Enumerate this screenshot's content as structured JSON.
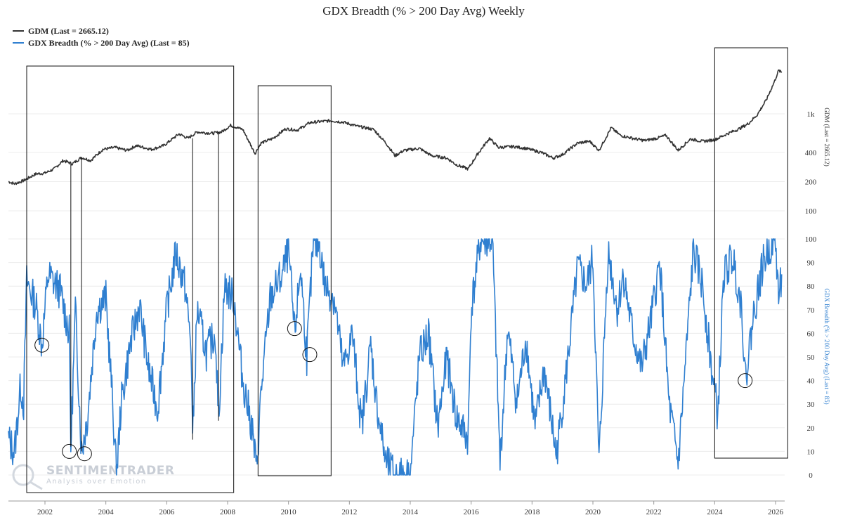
{
  "chart_data": {
    "type": "line",
    "title": "GDX Breadth (% > 200 Day Avg) Weekly",
    "legend": [
      {
        "label": "GDM (Last = 2665.12)",
        "color": "#333333"
      },
      {
        "label": "GDX Breadth (% > 200 Day Avg) (Last = 85)",
        "color": "#2f7fd0"
      }
    ],
    "x_ticks": [
      "2002",
      "2004",
      "2006",
      "2008",
      "2010",
      "2012",
      "2014",
      "2016",
      "2018",
      "2020",
      "2022",
      "2024",
      "2026"
    ],
    "x_range": [
      2000.8,
      2026.3
    ],
    "upper_axis": {
      "label": "GDM (Last = 2665.12)",
      "scale": "log",
      "ticks": [
        "1k",
        "400",
        "200",
        "100"
      ],
      "tick_values": [
        1000,
        400,
        200,
        100
      ]
    },
    "lower_axis": {
      "label": "GDX Breadth (% > 200 Day Avg) (Last = 85)",
      "range": [
        0,
        100
      ],
      "ticks": [
        "100",
        "90",
        "80",
        "70",
        "60",
        "50",
        "40",
        "30",
        "20",
        "10",
        "0"
      ],
      "tick_values": [
        100,
        90,
        80,
        70,
        60,
        50,
        40,
        30,
        20,
        10,
        0
      ]
    },
    "series": [
      {
        "name": "GDM",
        "color": "#333333",
        "points": [
          [
            2000.8,
            200
          ],
          [
            2001.0,
            190
          ],
          [
            2001.3,
            205
          ],
          [
            2001.7,
            240
          ],
          [
            2002.0,
            245
          ],
          [
            2002.3,
            270
          ],
          [
            2002.6,
            330
          ],
          [
            2002.9,
            305
          ],
          [
            2003.2,
            355
          ],
          [
            2003.5,
            330
          ],
          [
            2003.9,
            430
          ],
          [
            2004.3,
            450
          ],
          [
            2004.7,
            420
          ],
          [
            2005.0,
            470
          ],
          [
            2005.5,
            430
          ],
          [
            2005.9,
            470
          ],
          [
            2006.4,
            620
          ],
          [
            2006.7,
            560
          ],
          [
            2007.0,
            650
          ],
          [
            2007.5,
            630
          ],
          [
            2007.8,
            650
          ],
          [
            2008.1,
            760
          ],
          [
            2008.5,
            690
          ],
          [
            2008.9,
            390
          ],
          [
            2009.1,
            500
          ],
          [
            2009.5,
            560
          ],
          [
            2009.9,
            700
          ],
          [
            2010.3,
            680
          ],
          [
            2010.7,
            810
          ],
          [
            2011.0,
            830
          ],
          [
            2011.4,
            850
          ],
          [
            2011.8,
            820
          ],
          [
            2012.3,
            740
          ],
          [
            2012.8,
            690
          ],
          [
            2013.2,
            500
          ],
          [
            2013.5,
            370
          ],
          [
            2013.8,
            420
          ],
          [
            2014.3,
            440
          ],
          [
            2014.7,
            370
          ],
          [
            2015.2,
            350
          ],
          [
            2015.5,
            300
          ],
          [
            2015.9,
            270
          ],
          [
            2016.2,
            380
          ],
          [
            2016.6,
            560
          ],
          [
            2016.9,
            450
          ],
          [
            2017.4,
            460
          ],
          [
            2017.8,
            440
          ],
          [
            2018.3,
            400
          ],
          [
            2018.7,
            350
          ],
          [
            2019.0,
            380
          ],
          [
            2019.5,
            500
          ],
          [
            2019.9,
            520
          ],
          [
            2020.2,
            420
          ],
          [
            2020.6,
            720
          ],
          [
            2020.9,
            600
          ],
          [
            2021.3,
            560
          ],
          [
            2021.7,
            530
          ],
          [
            2022.1,
            560
          ],
          [
            2022.4,
            600
          ],
          [
            2022.8,
            420
          ],
          [
            2023.2,
            550
          ],
          [
            2023.6,
            520
          ],
          [
            2024.0,
            540
          ],
          [
            2024.4,
            620
          ],
          [
            2024.8,
            700
          ],
          [
            2025.1,
            790
          ],
          [
            2025.4,
            980
          ],
          [
            2025.7,
            1400
          ],
          [
            2025.95,
            2100
          ],
          [
            2026.1,
            2800
          ],
          [
            2026.2,
            2665
          ]
        ]
      },
      {
        "name": "GDX Breadth",
        "color": "#2f7fd0",
        "points": [
          [
            2000.8,
            15
          ],
          [
            2001.0,
            10
          ],
          [
            2001.2,
            38
          ],
          [
            2001.3,
            30
          ],
          [
            2001.4,
            82
          ],
          [
            2001.7,
            72
          ],
          [
            2001.9,
            55
          ],
          [
            2002.1,
            85
          ],
          [
            2002.5,
            78
          ],
          [
            2002.8,
            60
          ],
          [
            2002.85,
            12
          ],
          [
            2003.0,
            70
          ],
          [
            2003.2,
            10
          ],
          [
            2003.4,
            25
          ],
          [
            2003.7,
            70
          ],
          [
            2004.0,
            75
          ],
          [
            2004.2,
            35
          ],
          [
            2004.35,
            0
          ],
          [
            2004.5,
            30
          ],
          [
            2004.8,
            55
          ],
          [
            2005.1,
            72
          ],
          [
            2005.4,
            45
          ],
          [
            2005.7,
            28
          ],
          [
            2006.0,
            70
          ],
          [
            2006.3,
            94
          ],
          [
            2006.6,
            80
          ],
          [
            2006.8,
            55
          ],
          [
            2006.85,
            15
          ],
          [
            2007.0,
            70
          ],
          [
            2007.3,
            52
          ],
          [
            2007.6,
            60
          ],
          [
            2007.7,
            23
          ],
          [
            2007.9,
            80
          ],
          [
            2008.2,
            75
          ],
          [
            2008.5,
            40
          ],
          [
            2008.8,
            20
          ],
          [
            2008.95,
            2
          ],
          [
            2009.1,
            35
          ],
          [
            2009.4,
            75
          ],
          [
            2009.8,
            85
          ],
          [
            2010.0,
            95
          ],
          [
            2010.2,
            60
          ],
          [
            2010.4,
            88
          ],
          [
            2010.6,
            50
          ],
          [
            2010.8,
            95
          ],
          [
            2011.0,
            99
          ],
          [
            2011.2,
            80
          ],
          [
            2011.5,
            75
          ],
          [
            2011.8,
            45
          ],
          [
            2012.1,
            60
          ],
          [
            2012.4,
            20
          ],
          [
            2012.7,
            55
          ],
          [
            2012.9,
            30
          ],
          [
            2013.2,
            5
          ],
          [
            2013.5,
            0
          ],
          [
            2014.0,
            0
          ],
          [
            2014.3,
            50
          ],
          [
            2014.6,
            60
          ],
          [
            2014.9,
            20
          ],
          [
            2015.2,
            50
          ],
          [
            2015.5,
            25
          ],
          [
            2015.9,
            15
          ],
          [
            2016.0,
            70
          ],
          [
            2016.3,
            99
          ],
          [
            2016.7,
            99
          ],
          [
            2016.95,
            5
          ],
          [
            2017.2,
            62
          ],
          [
            2017.5,
            30
          ],
          [
            2017.8,
            58
          ],
          [
            2018.1,
            20
          ],
          [
            2018.4,
            45
          ],
          [
            2018.8,
            8
          ],
          [
            2019.1,
            40
          ],
          [
            2019.5,
            88
          ],
          [
            2019.8,
            80
          ],
          [
            2020.0,
            92
          ],
          [
            2020.2,
            5
          ],
          [
            2020.5,
            95
          ],
          [
            2020.8,
            70
          ],
          [
            2021.0,
            85
          ],
          [
            2021.3,
            60
          ],
          [
            2021.6,
            45
          ],
          [
            2021.9,
            65
          ],
          [
            2022.2,
            90
          ],
          [
            2022.5,
            30
          ],
          [
            2022.8,
            5
          ],
          [
            2023.0,
            40
          ],
          [
            2023.3,
            95
          ],
          [
            2023.6,
            80
          ],
          [
            2023.9,
            45
          ],
          [
            2024.1,
            25
          ],
          [
            2024.3,
            85
          ],
          [
            2024.6,
            92
          ],
          [
            2024.9,
            70
          ],
          [
            2025.0,
            40
          ],
          [
            2025.3,
            70
          ],
          [
            2025.6,
            90
          ],
          [
            2025.9,
            99
          ],
          [
            2026.0,
            99
          ],
          [
            2026.1,
            75
          ],
          [
            2026.2,
            85
          ]
        ]
      }
    ],
    "annotations": {
      "boxes": [
        [
          2001.4,
          2008.2
        ],
        [
          2009.0,
          2011.4
        ],
        [
          2024.0,
          2026.4
        ]
      ],
      "circles": [
        [
          2001.9,
          55
        ],
        [
          2002.8,
          10
        ],
        [
          2003.3,
          9
        ],
        [
          2010.2,
          62
        ],
        [
          2010.7,
          51
        ],
        [
          2025.0,
          40
        ]
      ],
      "vlines": [
        [
          2002.85,
          12
        ],
        [
          2003.2,
          10
        ],
        [
          2006.85,
          15
        ],
        [
          2007.7,
          23
        ]
      ]
    }
  },
  "watermark": {
    "brand": "SENTIMENTRADER",
    "tagline": "Analysis over Emotion"
  }
}
